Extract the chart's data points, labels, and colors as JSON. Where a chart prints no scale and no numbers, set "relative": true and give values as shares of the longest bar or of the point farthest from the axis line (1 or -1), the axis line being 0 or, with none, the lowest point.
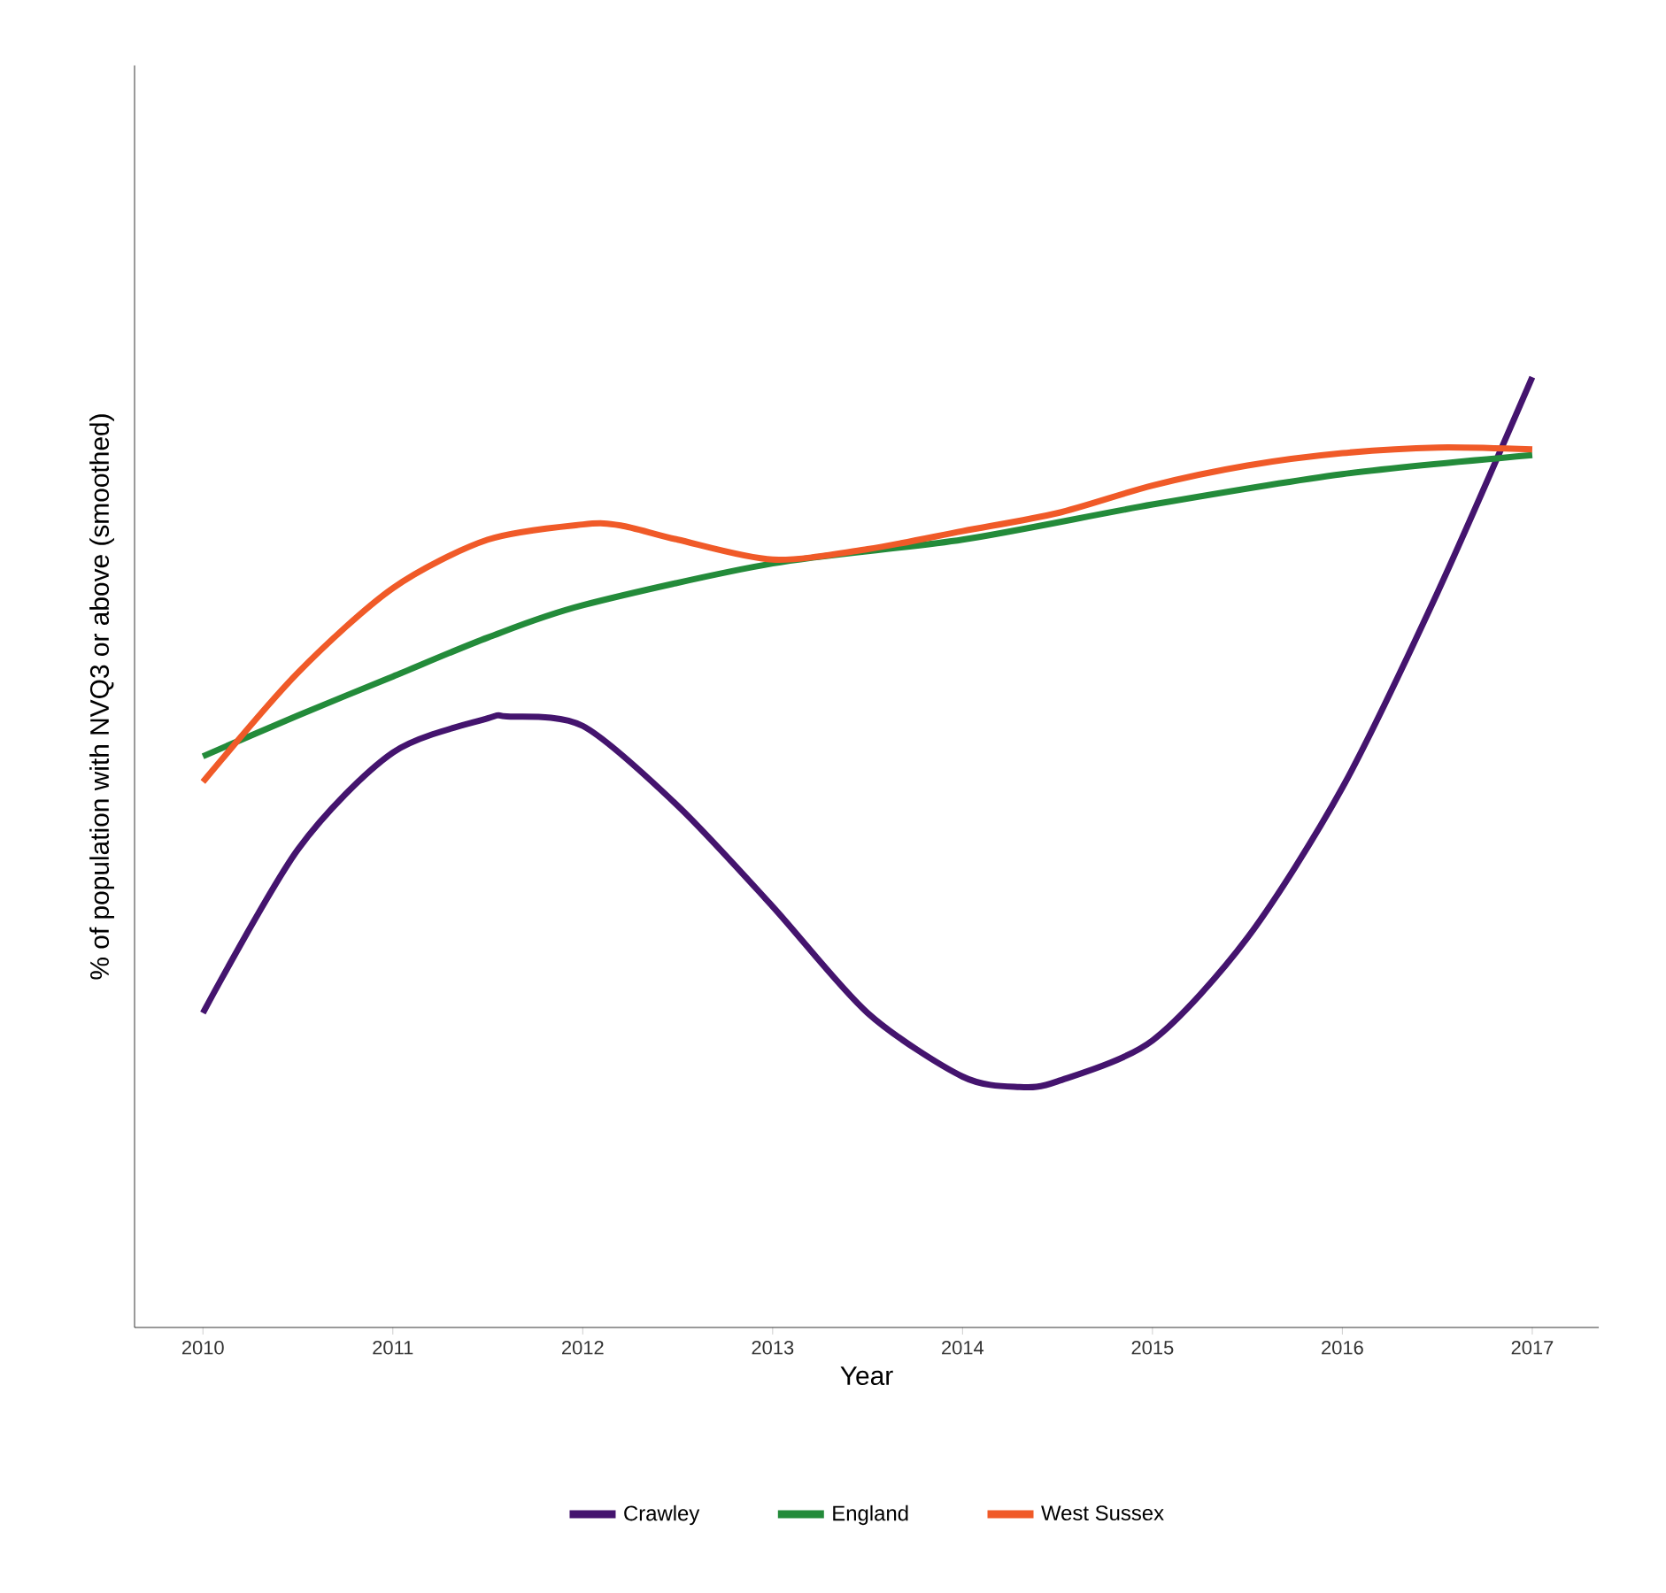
{
  "chart_data": {
    "type": "line",
    "relative": true,
    "xlabel": "Year",
    "ylabel": "% of population with NVQ3 or above (smoothed)",
    "xlim": [
      2009.64,
      2017.35
    ],
    "xticks": [
      2010,
      2011,
      2012,
      2013,
      2014,
      2015,
      2016,
      2017
    ],
    "legend": "bottom",
    "grid": false,
    "line_style": "solid",
    "series": [
      {
        "name": "Crawley",
        "color": "#44146e",
        "x": [
          2010,
          2010.5,
          2011,
          2011.5,
          2011.6,
          2012,
          2012.5,
          2013,
          2013.5,
          2014,
          2014.3,
          2014.5,
          2015,
          2015.5,
          2016,
          2016.5,
          2017
        ],
        "values": [
          0.331,
          0.503,
          0.605,
          0.641,
          0.643,
          0.633,
          0.549,
          0.443,
          0.331,
          0.264,
          0.253,
          0.259,
          0.302,
          0.41,
          0.568,
          0.773,
          1
        ]
      },
      {
        "name": "England",
        "color": "#238b3a",
        "x": [
          2010,
          2010.5,
          2011,
          2011.5,
          2012,
          2013,
          2014,
          2015,
          2016,
          2017
        ],
        "values": [
          0.601,
          0.644,
          0.685,
          0.726,
          0.76,
          0.804,
          0.829,
          0.866,
          0.898,
          0.918
        ]
      },
      {
        "name": "West Sussex",
        "color": "#f05a28",
        "x": [
          2010,
          2010.5,
          2011,
          2011.5,
          2012,
          2012.2,
          2012.5,
          2013,
          2013.5,
          2014,
          2014.5,
          2015,
          2015.5,
          2016,
          2016.5,
          2017
        ],
        "values": [
          0.574,
          0.689,
          0.778,
          0.829,
          0.845,
          0.844,
          0.829,
          0.808,
          0.819,
          0.838,
          0.857,
          0.886,
          0.907,
          0.92,
          0.926,
          0.924
        ]
      }
    ]
  }
}
